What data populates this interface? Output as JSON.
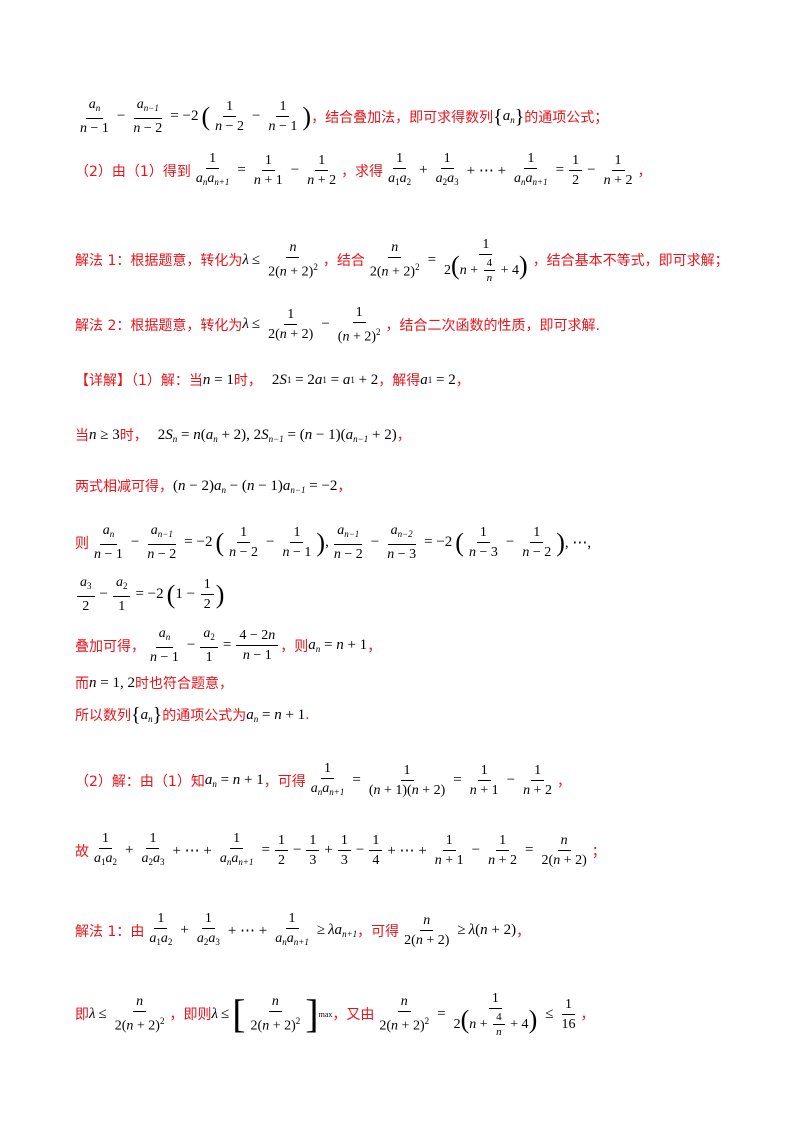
{
  "lines": {
    "l1": {
      "text": "，结合叠加法，即可求得数列",
      "text2": "的通项公式；"
    },
    "l2": {
      "t1": "（2）由（1）得到",
      "t2": "，求得",
      "t3": "，"
    },
    "l3": {
      "t1": "解法 1：根据题意，转化为",
      "t2": "，结合",
      "t3": "，结合基本不等式，即可求解；"
    },
    "l4": {
      "t1": "解法 2：根据题意，转化为",
      "t2": "，结合二次函数的性质，即可求解."
    },
    "l5": {
      "t1": "【详解】（1）解：当",
      "t2": "时，",
      "t3": "，解得",
      "t4": "，"
    },
    "l6": {
      "t1": "当",
      "t2": "时，",
      "t3": "，"
    },
    "l7": {
      "t1": "两式相减可得，",
      "t2": "，"
    },
    "l8": {
      "t1": "则"
    },
    "l10": {
      "t1": "叠加可得，",
      "t2": "，则",
      "t3": "，"
    },
    "l11": {
      "t1": "而",
      "t2": "时也符合题意，"
    },
    "l12": {
      "t1": "所以数列",
      "t2": "的通项公式为",
      "t3": "."
    },
    "l13": {
      "t1": "（2）解：由（1）知",
      "t2": "，可得",
      "t3": "，"
    },
    "l14": {
      "t1": "故",
      "t2": "；"
    },
    "l15": {
      "t1": "解法 1：由",
      "t2": "，可得",
      "t3": "，"
    },
    "l16": {
      "t1": "即",
      "t2": "，即则",
      "t3": "，又由",
      "t4": "，"
    }
  }
}
